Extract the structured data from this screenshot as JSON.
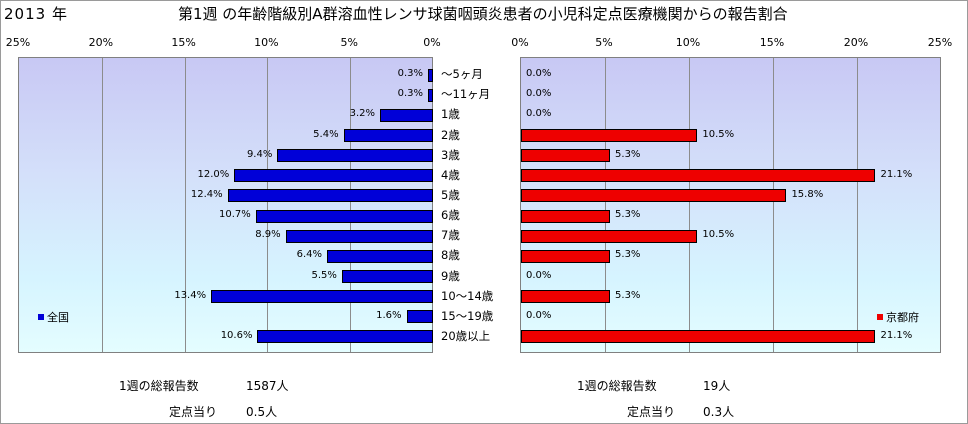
{
  "header": {
    "year": "2013 年",
    "title": "第1週 の年齢階級別A群溶血性レンサ球菌咽頭炎患者の小児科定点医療機関からの報告割合"
  },
  "chart_data": [
    {
      "type": "bar",
      "orientation": "horizontal",
      "direction": "leftward",
      "legend": "全国",
      "legend_position": "left",
      "color": "#0000d8",
      "xlim": [
        0,
        25
      ],
      "ticks": [
        "25%",
        "20%",
        "15%",
        "10%",
        "5%",
        "0%"
      ],
      "tick_values": [
        25,
        20,
        15,
        10,
        5,
        0
      ],
      "grid": true,
      "categories": [
        "～5ヶ月",
        "～11ヶ月",
        "1歳",
        "2歳",
        "3歳",
        "4歳",
        "5歳",
        "6歳",
        "7歳",
        "8歳",
        "9歳",
        "10～14歳",
        "15～19歳",
        "20歳以上"
      ],
      "series": [
        {
          "name": "全国",
          "values": [
            0.3,
            0.3,
            3.2,
            5.4,
            9.4,
            12.0,
            12.4,
            10.7,
            8.9,
            6.4,
            5.5,
            13.4,
            1.6,
            10.6
          ],
          "labels": [
            "0.3%",
            "0.3%",
            "3.2%",
            "5.4%",
            "9.4%",
            "12.0%",
            "12.4%",
            "10.7%",
            "8.9%",
            "6.4%",
            "5.5%",
            "13.4%",
            "1.6%",
            "10.6%"
          ]
        }
      ]
    },
    {
      "type": "bar",
      "orientation": "horizontal",
      "direction": "rightward",
      "legend": "京都府",
      "legend_position": "right",
      "color": "#ee0000",
      "xlim": [
        0,
        25
      ],
      "ticks": [
        "0%",
        "5%",
        "10%",
        "15%",
        "20%",
        "25%"
      ],
      "tick_values": [
        0,
        5,
        10,
        15,
        20,
        25
      ],
      "grid": true,
      "categories": [
        "～5ヶ月",
        "～11ヶ月",
        "1歳",
        "2歳",
        "3歳",
        "4歳",
        "5歳",
        "6歳",
        "7歳",
        "8歳",
        "9歳",
        "10～14歳",
        "15～19歳",
        "20歳以上"
      ],
      "series": [
        {
          "name": "京都府",
          "values": [
            0.0,
            0.0,
            0.0,
            10.5,
            5.3,
            21.1,
            15.8,
            5.3,
            10.5,
            5.3,
            0.0,
            5.3,
            0.0,
            21.1
          ],
          "labels": [
            "0.0%",
            "0.0%",
            "0.0%",
            "10.5%",
            "5.3%",
            "21.1%",
            "15.8%",
            "5.3%",
            "10.5%",
            "5.3%",
            "0.0%",
            "5.3%",
            "0.0%",
            "21.1%"
          ]
        }
      ]
    }
  ],
  "footer": {
    "left": {
      "total_label": "1週の総報告数",
      "total_value": "1587人",
      "per_label": "定点当り",
      "per_value": "0.5人"
    },
    "right": {
      "total_label": "1週の総報告数",
      "total_value": "19人",
      "per_label": "定点当り",
      "per_value": "0.3人"
    }
  }
}
